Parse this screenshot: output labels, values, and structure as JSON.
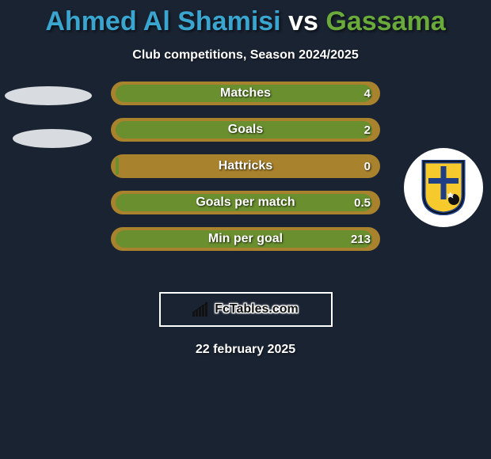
{
  "title": {
    "player1": "Ahmed Al Shamisi",
    "vs": "vs",
    "player2": "Gassama",
    "player1_color": "#3aa6d0",
    "vs_color": "#ffffff",
    "player2_color": "#69aa3b"
  },
  "subtitle": "Club competitions, Season 2024/2025",
  "bars_style": {
    "outer_color": "#a8822c",
    "inner_color": "#6a8f2f",
    "height": 30,
    "radius": 16,
    "gap": 16
  },
  "bars": [
    {
      "label": "Matches",
      "left": "",
      "right": "4",
      "inner_width_pct": 97
    },
    {
      "label": "Goals",
      "left": "",
      "right": "2",
      "inner_width_pct": 97
    },
    {
      "label": "Hattricks",
      "left": "",
      "right": "0",
      "inner_width_pct": 3
    },
    {
      "label": "Goals per match",
      "left": "",
      "right": "0.5",
      "inner_width_pct": 97
    },
    {
      "label": "Min per goal",
      "left": "",
      "right": "213",
      "inner_width_pct": 97
    }
  ],
  "left_side": {
    "type": "placeholder-ellipses",
    "ellipse_color": "#d8dce0"
  },
  "right_side": {
    "type": "club-crest",
    "bg": "#ffffff",
    "shield_yellow": "#f6c92d",
    "shield_blue": "#1e3e86",
    "shield_border": "#0a0a0a",
    "ball_color": "#111111"
  },
  "brand": {
    "icon": "ascending-bars",
    "text": "FcTables.com",
    "border_color": "#ffffff",
    "icon_color": "#111111"
  },
  "date": "22 february 2025",
  "colors": {
    "background": "#1a2332",
    "text": "#ffffff"
  }
}
